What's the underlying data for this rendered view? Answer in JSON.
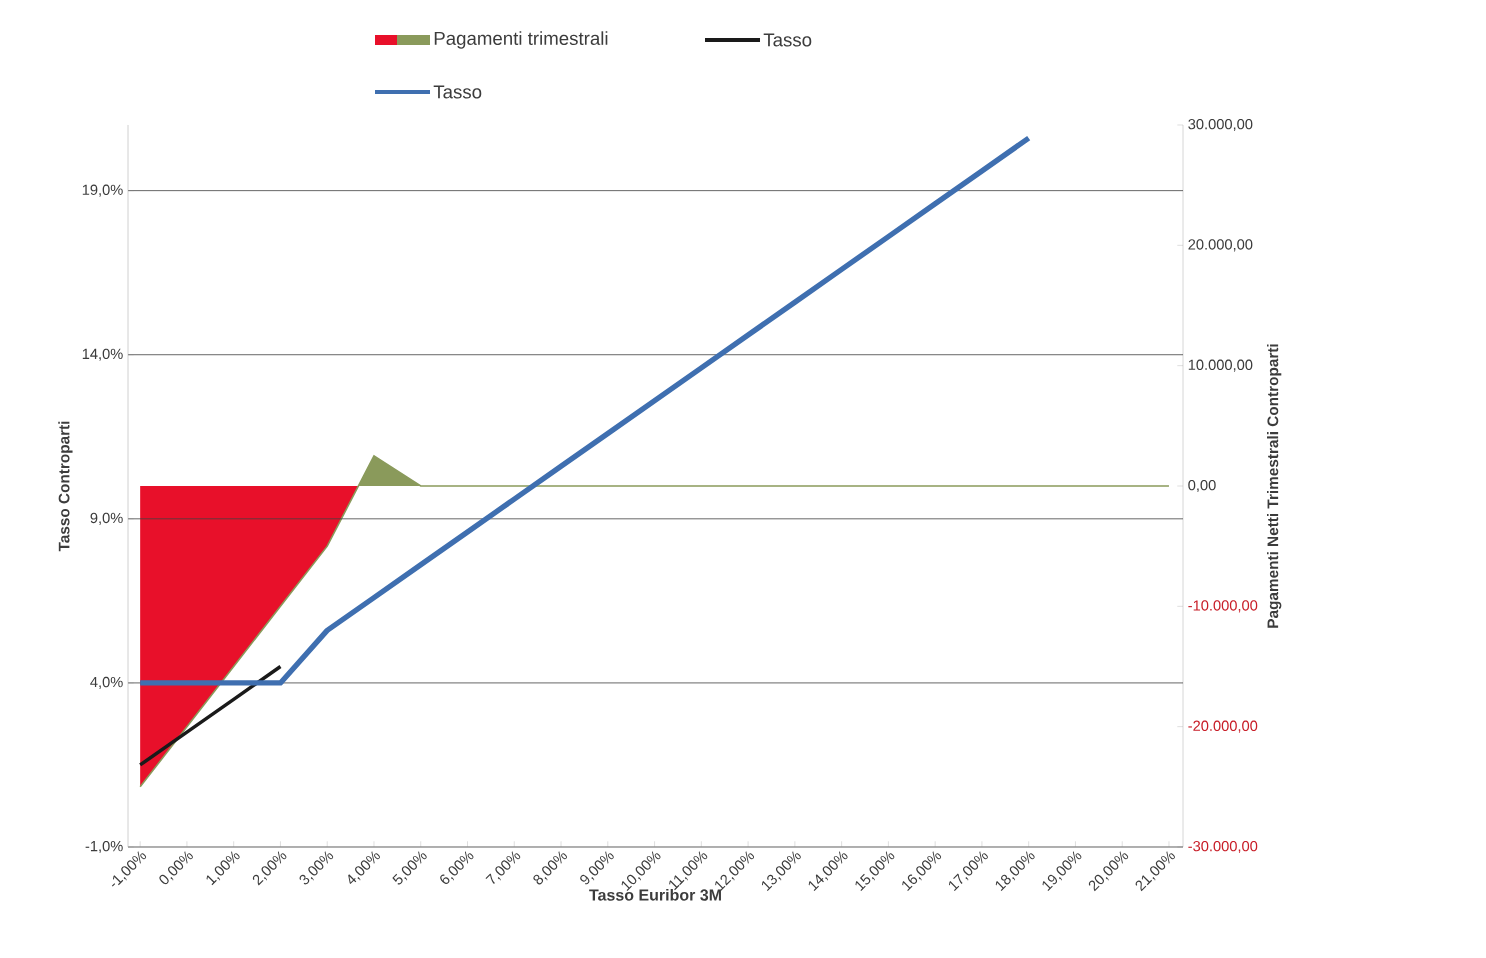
{
  "chart_data": {
    "type": "line",
    "xlabel": "Tasso  Euribor 3M",
    "ylabel": "Tasso  Controparti",
    "y2label": "Pagamenti  Netti  Trimestrali  Controparti",
    "categories": [
      "-1,00%",
      "0,00%",
      "1,00%",
      "2,00%",
      "3,00%",
      "4,00%",
      "5,00%",
      "6,00%",
      "7,00%",
      "8,00%",
      "9,00%",
      "10,00%",
      "11,00%",
      "12,00%",
      "13,00%",
      "14,00%",
      "15,00%",
      "16,00%",
      "17,00%",
      "18,00%",
      "19,00%",
      "20,00%",
      "21,00%"
    ],
    "ylim": [
      -1,
      21
    ],
    "yticks": [
      {
        "value": -1,
        "label": "-1,0%"
      },
      {
        "value": 4,
        "label": "4,0%"
      },
      {
        "value": 9,
        "label": "9,0%"
      },
      {
        "value": 14,
        "label": "14,0%"
      },
      {
        "value": 19,
        "label": "19,0%"
      }
    ],
    "y2lim": [
      -30000,
      30000
    ],
    "y2ticks": [
      {
        "value": -30000,
        "label": "-30.000,00"
      },
      {
        "value": -20000,
        "label": "-20.000,00"
      },
      {
        "value": -10000,
        "label": "-10.000,00"
      },
      {
        "value": 0,
        "label": "0,00"
      },
      {
        "value": 10000,
        "label": "10.000,00"
      },
      {
        "value": 20000,
        "label": "20.000,00"
      },
      {
        "value": 30000,
        "label": "30.000,00"
      }
    ],
    "grid": "y",
    "legend": "top",
    "series": [
      {
        "name": "Pagamenti trimestrali",
        "type": "area",
        "axis": "y2",
        "colors": [
          "#e8102a",
          "#e8102a",
          "#e8102a",
          "#e8102a",
          "#e8102a",
          "#8a9a5b",
          "#8a9a5b",
          "#8a9a5b",
          "#8a9a5b",
          "#8a9a5b",
          "#8a9a5b",
          "#8a9a5b",
          "#8a9a5b",
          "#8a9a5b",
          "#8a9a5b",
          "#8a9a5b",
          "#8a9a5b",
          "#8a9a5b",
          "#8a9a5b",
          "#8a9a5b",
          "#8a9a5b",
          "#8a9a5b",
          "#8a9a5b"
        ],
        "values": [
          -25000,
          -20000,
          -15000,
          -10000,
          -5000,
          2500,
          0,
          0,
          0,
          0,
          0,
          0,
          0,
          0,
          0,
          0,
          0,
          0,
          0,
          0,
          0,
          0,
          0
        ]
      },
      {
        "name": "Tasso",
        "color": "#1a1a1a",
        "values": [
          1.5,
          2.5,
          3.5,
          4.5,
          null,
          null,
          null,
          null,
          null,
          null,
          null,
          null,
          null,
          null,
          null,
          null,
          null,
          null,
          null,
          null,
          null,
          null,
          null
        ]
      },
      {
        "name": "Tasso",
        "color": "#3f6fb0",
        "values": [
          4,
          4,
          4,
          4,
          5.6,
          6.6,
          7.6,
          8.6,
          9.6,
          10.6,
          11.6,
          12.6,
          13.6,
          14.6,
          15.6,
          16.6,
          17.6,
          18.6,
          19.6,
          20.6,
          null,
          null,
          null
        ]
      }
    ]
  }
}
